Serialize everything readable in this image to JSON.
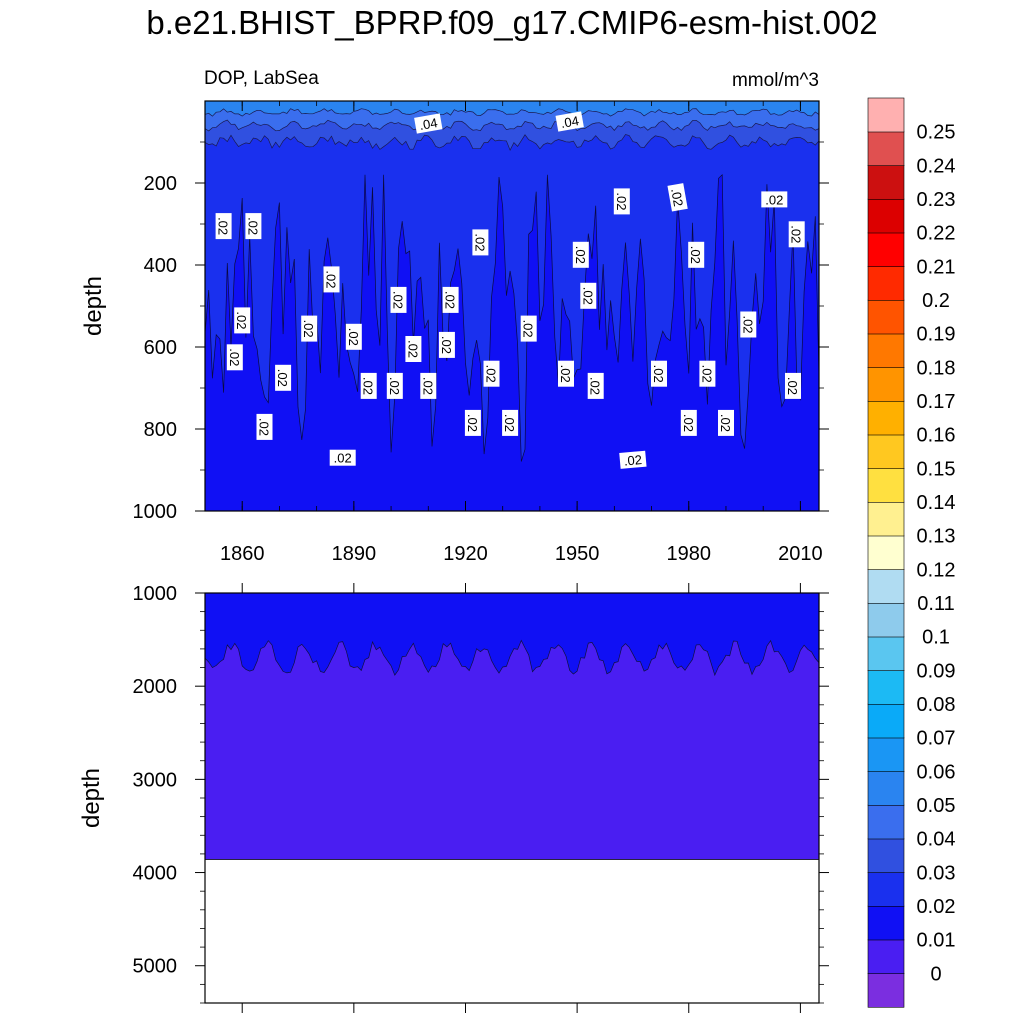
{
  "chart_data": {
    "type": "contour",
    "title": "b.e21.BHIST_BPRP.f09_g17.CMIP6-esm-hist.002",
    "left_subtitle": "DOP, LabSea",
    "right_subtitle": "mmol/m^3",
    "variable": "DOP",
    "region": "LabSea",
    "units": "mmol/m^3",
    "panels": [
      {
        "name": "upper",
        "xlim": [
          1850,
          2015
        ],
        "ylim": [
          0,
          1000
        ],
        "y_reversed": true,
        "xlabel": "",
        "ylabel": "depth",
        "x_ticks": [
          1860,
          1890,
          1920,
          1950,
          1980,
          2010
        ],
        "y_ticks": [
          200,
          400,
          600,
          800,
          1000
        ],
        "contour_labels": [
          {
            "text": ".04",
            "year": 1910,
            "depth": 55,
            "rotation": -10
          },
          {
            "text": ".04",
            "year": 1948,
            "depth": 50,
            "rotation": -10
          },
          {
            "text": ".02",
            "year": 1855,
            "depth": 305,
            "rotation": 90
          },
          {
            "text": ".02",
            "year": 1863,
            "depth": 305,
            "rotation": 90
          },
          {
            "text": ".02",
            "year": 1860,
            "depth": 535,
            "rotation": 90
          },
          {
            "text": ".02",
            "year": 1858,
            "depth": 625,
            "rotation": 90
          },
          {
            "text": ".02",
            "year": 1866,
            "depth": 795,
            "rotation": 90
          },
          {
            "text": ".02",
            "year": 1871,
            "depth": 675,
            "rotation": 90
          },
          {
            "text": ".02",
            "year": 1878,
            "depth": 555,
            "rotation": 90
          },
          {
            "text": ".02",
            "year": 1884,
            "depth": 435,
            "rotation": 90
          },
          {
            "text": ".02",
            "year": 1887,
            "depth": 870,
            "rotation": 0
          },
          {
            "text": ".02",
            "year": 1890,
            "depth": 575,
            "rotation": 90
          },
          {
            "text": ".02",
            "year": 1894,
            "depth": 695,
            "rotation": 90
          },
          {
            "text": ".02",
            "year": 1901,
            "depth": 695,
            "rotation": 90
          },
          {
            "text": ".02",
            "year": 1902,
            "depth": 485,
            "rotation": 90
          },
          {
            "text": ".02",
            "year": 1906,
            "depth": 605,
            "rotation": 90
          },
          {
            "text": ".02",
            "year": 1910,
            "depth": 695,
            "rotation": 90
          },
          {
            "text": ".02",
            "year": 1915,
            "depth": 595,
            "rotation": 90
          },
          {
            "text": ".02",
            "year": 1916,
            "depth": 485,
            "rotation": 90
          },
          {
            "text": ".02",
            "year": 1922,
            "depth": 785,
            "rotation": 90
          },
          {
            "text": ".02",
            "year": 1924,
            "depth": 345,
            "rotation": 90
          },
          {
            "text": ".02",
            "year": 1927,
            "depth": 665,
            "rotation": 90
          },
          {
            "text": ".02",
            "year": 1932,
            "depth": 785,
            "rotation": 90
          },
          {
            "text": ".02",
            "year": 1937,
            "depth": 555,
            "rotation": 90
          },
          {
            "text": ".02",
            "year": 1947,
            "depth": 665,
            "rotation": 90
          },
          {
            "text": ".02",
            "year": 1951,
            "depth": 375,
            "rotation": 90
          },
          {
            "text": ".02",
            "year": 1953,
            "depth": 475,
            "rotation": 90
          },
          {
            "text": ".02",
            "year": 1955,
            "depth": 695,
            "rotation": 90
          },
          {
            "text": ".02",
            "year": 1962,
            "depth": 245,
            "rotation": 90
          },
          {
            "text": ".02",
            "year": 1965,
            "depth": 875,
            "rotation": -5
          },
          {
            "text": ".02",
            "year": 1972,
            "depth": 665,
            "rotation": 90
          },
          {
            "text": ".02",
            "year": 1977,
            "depth": 235,
            "rotation": 80
          },
          {
            "text": ".02",
            "year": 1980,
            "depth": 785,
            "rotation": 90
          },
          {
            "text": ".02",
            "year": 1982,
            "depth": 375,
            "rotation": 90
          },
          {
            "text": ".02",
            "year": 1985,
            "depth": 665,
            "rotation": 90
          },
          {
            "text": ".02",
            "year": 1990,
            "depth": 785,
            "rotation": 90
          },
          {
            "text": ".02",
            "year": 1996,
            "depth": 545,
            "rotation": 90
          },
          {
            "text": ".02",
            "year": 2003,
            "depth": 240,
            "rotation": 0
          },
          {
            "text": ".02",
            "year": 2008,
            "depth": 695,
            "rotation": 90
          },
          {
            "text": ".02",
            "year": 2009,
            "depth": 325,
            "rotation": 90
          }
        ]
      },
      {
        "name": "lower",
        "xlim": [
          1850,
          2015
        ],
        "ylim": [
          1000,
          5400
        ],
        "y_reversed": true,
        "xlabel": "",
        "ylabel": "depth",
        "y_ticks": [
          1000,
          2000,
          3000,
          4000,
          5000
        ],
        "bottom_depth": 3860
      }
    ],
    "colorbar": {
      "levels": [
        0,
        0.01,
        0.02,
        0.03,
        0.04,
        0.05,
        0.06,
        0.07,
        0.08,
        0.09,
        0.1,
        0.11,
        0.12,
        0.13,
        0.14,
        0.15,
        0.16,
        0.17,
        0.18,
        0.19,
        0.2,
        0.21,
        0.22,
        0.23,
        0.24,
        0.25
      ],
      "labels": [
        "0",
        "0.01",
        "0.02",
        "0.03",
        "0.04",
        "0.05",
        "0.06",
        "0.07",
        "0.08",
        "0.09",
        "0.1",
        "0.11",
        "0.12",
        "0.13",
        "0.14",
        "0.15",
        "0.16",
        "0.17",
        "0.18",
        "0.19",
        "0.2",
        "0.21",
        "0.22",
        "0.23",
        "0.24",
        "0.25"
      ],
      "colors": [
        "#7b2ee0",
        "#4a1ef2",
        "#1010f4",
        "#1a30ee",
        "#3050e0",
        "#3a6eee",
        "#2a84f0",
        "#1a96f4",
        "#0aaaf8",
        "#1cbaf4",
        "#5ac6f0",
        "#8ecbec",
        "#b0dcf2",
        "#ffffd0",
        "#fff090",
        "#ffe040",
        "#ffc820",
        "#ffb000",
        "#ff9400",
        "#ff7800",
        "#ff5400",
        "#ff2a00",
        "#ff0000",
        "#dc0000",
        "#cc1010",
        "#e05050",
        "#ffb0b0"
      ]
    },
    "fill_colors": {
      "below_0.01": "#4a1ef2",
      "0.01_0.02": "#1010f4",
      "0.02_0.03": "#1a30ee",
      "0.03_0.04": "#3050e0",
      "0.04_0.05": "#3a6eee",
      "surface": "#2a84f0"
    }
  }
}
